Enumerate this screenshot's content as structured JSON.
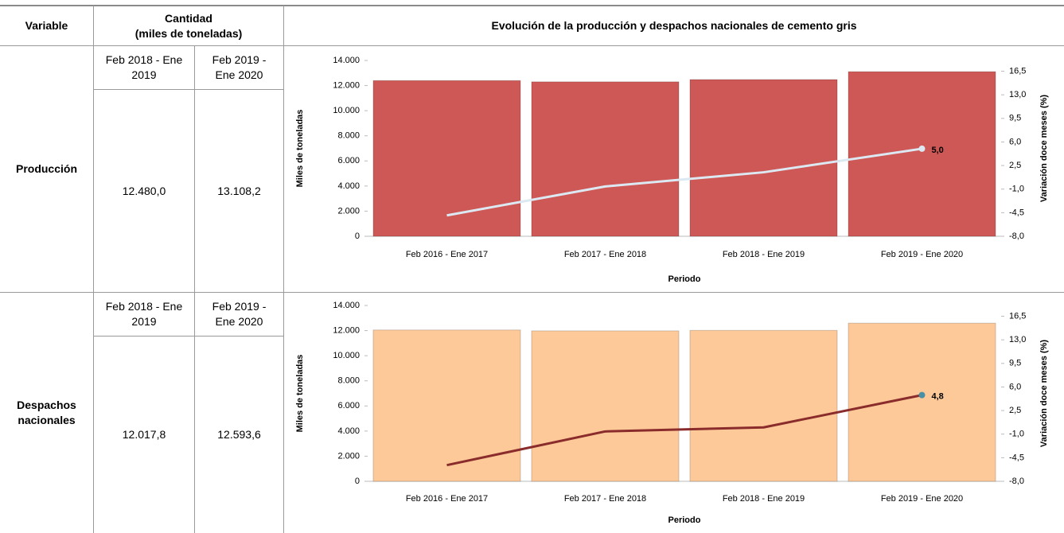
{
  "header": {
    "variable": "Variable",
    "quantity": [
      "Cantidad",
      "(miles de toneladas)"
    ],
    "chart_title": "Evolución de la producción y despachos nacionales de cemento gris"
  },
  "table": {
    "rows": [
      {
        "variable": "Producción",
        "periods": [
          "Feb 2018 - Ene 2019",
          "Feb 2019 - Ene 2020"
        ],
        "values": [
          "12.480,0",
          "13.108,2"
        ]
      },
      {
        "variable": "Despachos nacionales",
        "periods": [
          "Feb 2018 - Ene 2019",
          "Feb 2019 - Ene 2020"
        ],
        "values": [
          "12.017,8",
          "12.593,6"
        ]
      }
    ]
  },
  "chart_data": [
    {
      "type": "bar",
      "categories": [
        "Feb 2016 - Ene 2017",
        "Feb 2017 - Ene 2018",
        "Feb 2018 - Ene 2019",
        "Feb 2019 - Ene 2020"
      ],
      "xlabel": "Periodo",
      "ylabel": "Miles de toneladas",
      "y2label": "Variación doce meses (%)",
      "ylim": [
        0,
        14000
      ],
      "yticks": [
        {
          "value": 0,
          "label": "0"
        },
        {
          "value": 2000,
          "label": "2.000"
        },
        {
          "value": 4000,
          "label": "4.000"
        },
        {
          "value": 6000,
          "label": "6.000"
        },
        {
          "value": 8000,
          "label": "8.000"
        },
        {
          "value": 10000,
          "label": "10.000"
        },
        {
          "value": 12000,
          "label": "12.000"
        },
        {
          "value": 14000,
          "label": "14.000"
        }
      ],
      "y2lim": [
        -8,
        18.1
      ],
      "y2ticks": [
        {
          "value": -8,
          "label": "-8,0"
        },
        {
          "value": -4.5,
          "label": "-4,5"
        },
        {
          "value": -1,
          "label": "-1,0"
        },
        {
          "value": 2.5,
          "label": "2,5"
        },
        {
          "value": 6,
          "label": "6,0"
        },
        {
          "value": 9.5,
          "label": "9,5"
        },
        {
          "value": 13,
          "label": "13,0"
        },
        {
          "value": 16.5,
          "label": "16,5"
        }
      ],
      "series": [
        {
          "type": "bar",
          "color": "#cd5855",
          "values": [
            12400,
            12300,
            12480,
            13108.2
          ]
        },
        {
          "type": "line",
          "axis": "y2",
          "color": "#dce9f2",
          "marker_color": "#dce9f2",
          "label_color": "#ffffff",
          "values": [
            -4.9,
            -0.6,
            1.5,
            5.0
          ],
          "value_labels": [
            null,
            null,
            null,
            "5,0"
          ]
        }
      ]
    },
    {
      "type": "bar",
      "categories": [
        "Feb 2016 - Ene 2017",
        "Feb 2017 - Ene 2018",
        "Feb 2018 - Ene 2019",
        "Feb 2019 - Ene 2020"
      ],
      "xlabel": "Periodo",
      "ylabel": "Miles de toneladas",
      "y2label": "Variación doce meses (%)",
      "ylim": [
        0,
        14000
      ],
      "yticks": [
        {
          "value": 0,
          "label": "0"
        },
        {
          "value": 2000,
          "label": "2.000"
        },
        {
          "value": 4000,
          "label": "4.000"
        },
        {
          "value": 6000,
          "label": "6.000"
        },
        {
          "value": 8000,
          "label": "8.000"
        },
        {
          "value": 10000,
          "label": "10.000"
        },
        {
          "value": 12000,
          "label": "12.000"
        },
        {
          "value": 14000,
          "label": "14.000"
        }
      ],
      "y2lim": [
        -8,
        18.1
      ],
      "y2ticks": [
        {
          "value": -8,
          "label": "-8,0"
        },
        {
          "value": -4.5,
          "label": "-4,5"
        },
        {
          "value": -1,
          "label": "-1,0"
        },
        {
          "value": 2.5,
          "label": "2,5"
        },
        {
          "value": 6,
          "label": "6,0"
        },
        {
          "value": 9.5,
          "label": "9,5"
        },
        {
          "value": 13,
          "label": "13,0"
        },
        {
          "value": 16.5,
          "label": "16,5"
        }
      ],
      "series": [
        {
          "type": "bar",
          "color": "#fdc998",
          "values": [
            12050,
            11980,
            12017.8,
            12593.6
          ]
        },
        {
          "type": "line",
          "axis": "y2",
          "color": "#8b2c2c",
          "marker_color": "#4a90a4",
          "label_color": "#c0504d",
          "values": [
            -5.6,
            -0.6,
            0.0,
            4.8
          ],
          "value_labels": [
            null,
            null,
            null,
            "4,8"
          ]
        }
      ]
    }
  ]
}
